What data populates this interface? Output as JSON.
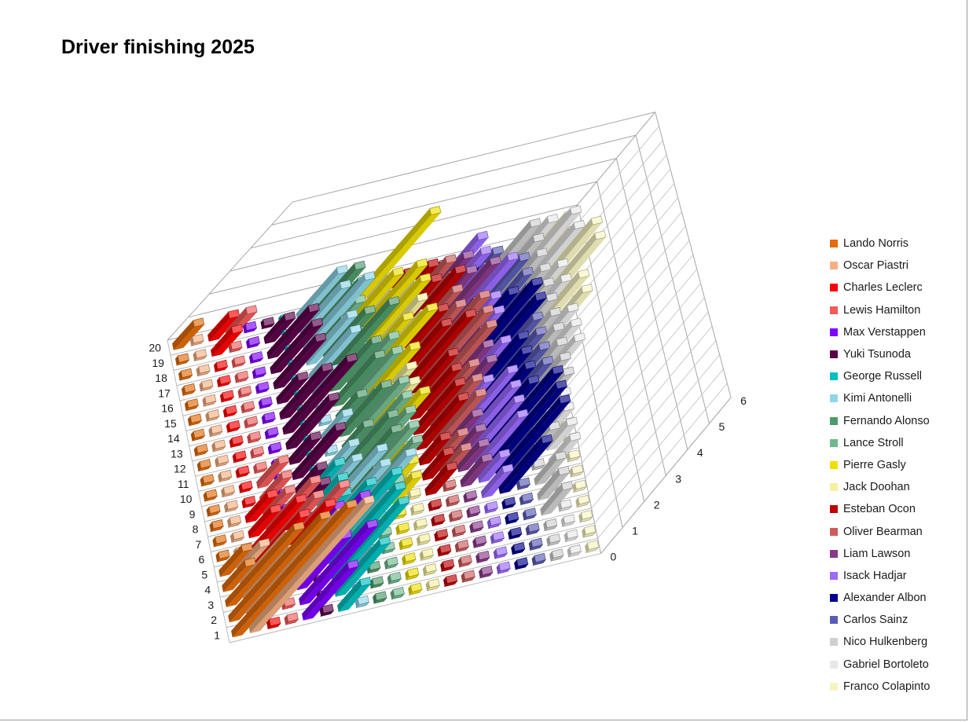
{
  "chart_data": {
    "type": "bar",
    "variant": "3d-column",
    "title": "Driver finishing 2025",
    "zlim": [
      0,
      6
    ],
    "z_ticks": [
      "0",
      "1",
      "2",
      "3",
      "4",
      "5",
      "6"
    ],
    "positions": [
      "1",
      "2",
      "3",
      "4",
      "5",
      "6",
      "7",
      "8",
      "9",
      "10",
      "11",
      "12",
      "13",
      "14",
      "15",
      "16",
      "17",
      "18",
      "19",
      "20"
    ],
    "legend_position": "right",
    "gridlines": true,
    "series": [
      {
        "name": "Lando Norris",
        "color": "#E46C0A",
        "values": [
          5,
          4,
          3,
          1,
          1,
          0,
          0,
          0,
          0,
          0,
          0,
          0,
          0,
          0,
          0,
          0,
          0,
          0,
          0,
          1
        ]
      },
      {
        "name": "Oscar Piastri",
        "color": "#F4B183",
        "values": [
          5,
          4,
          2,
          2,
          1,
          0,
          0,
          0,
          0,
          0,
          0,
          0,
          0,
          0,
          0,
          0,
          0,
          0,
          0,
          0
        ]
      },
      {
        "name": "Charles Leclerc",
        "color": "#FF0000",
        "values": [
          0,
          1,
          3,
          3,
          2,
          2,
          1,
          1,
          0,
          0,
          0,
          0,
          0,
          0,
          0,
          0,
          0,
          0,
          1,
          1
        ]
      },
      {
        "name": "Lewis Hamilton",
        "color": "#F25A5A",
        "values": [
          0,
          0,
          2,
          2,
          3,
          2,
          2,
          1,
          1,
          1,
          0,
          0,
          0,
          0,
          0,
          0,
          0,
          0,
          0,
          1
        ]
      },
      {
        "name": "Max Verstappen",
        "color": "#7F00FF",
        "values": [
          2,
          3,
          2,
          3,
          2,
          1,
          1,
          0,
          0,
          0,
          0,
          0,
          0,
          0,
          0,
          0,
          0,
          0,
          0,
          0
        ]
      },
      {
        "name": "Yuki Tsunoda",
        "color": "#5C0049",
        "values": [
          0,
          0,
          0,
          0,
          0,
          0,
          0,
          1,
          1,
          2,
          1,
          2,
          3,
          2,
          1,
          2,
          2,
          2,
          1,
          0
        ]
      },
      {
        "name": "George Russell",
        "color": "#00C1C1",
        "values": [
          1,
          2,
          3,
          3,
          3,
          2,
          1,
          1,
          1,
          0,
          0,
          0,
          0,
          0,
          0,
          0,
          0,
          0,
          0,
          0
        ]
      },
      {
        "name": "Kimi Antonelli",
        "color": "#8ED6E8",
        "values": [
          0,
          0,
          1,
          1,
          2,
          3,
          2,
          2,
          1,
          1,
          0,
          1,
          0,
          0,
          1,
          2,
          2,
          3,
          2,
          2
        ]
      },
      {
        "name": "Fernando Alonso",
        "color": "#4E9A6A",
        "values": [
          0,
          0,
          0,
          0,
          0,
          0,
          1,
          1,
          2,
          2,
          1,
          2,
          1,
          2,
          2,
          3,
          2,
          1,
          2,
          2
        ]
      },
      {
        "name": "Lance Stroll",
        "color": "#6FB98F",
        "values": [
          0,
          0,
          0,
          0,
          0,
          0,
          1,
          2,
          2,
          2,
          2,
          2,
          1,
          2,
          2,
          1,
          1,
          0,
          1,
          1
        ]
      },
      {
        "name": "Pierre Gasly",
        "color": "#F0E000",
        "values": [
          0,
          0,
          0,
          0,
          0,
          0,
          1,
          1,
          1,
          1,
          2,
          1,
          1,
          2,
          3,
          2,
          3,
          3,
          2,
          4
        ]
      },
      {
        "name": "Jack Doohan",
        "color": "#F5F0A0",
        "values": [
          0,
          0,
          0,
          0,
          0,
          0,
          0,
          0,
          0,
          0,
          0,
          1,
          1,
          1,
          1,
          2,
          2,
          2,
          1,
          1
        ]
      },
      {
        "name": "Esteban Ocon",
        "color": "#C00000",
        "values": [
          0,
          0,
          0,
          0,
          0,
          0,
          1,
          1,
          1,
          2,
          2,
          2,
          2,
          3,
          2,
          2,
          3,
          2,
          2,
          1
        ]
      },
      {
        "name": "Oliver Bearman",
        "color": "#CD5C5C",
        "values": [
          0,
          0,
          0,
          0,
          0,
          0,
          0,
          1,
          1,
          2,
          2,
          2,
          3,
          3,
          3,
          2,
          2,
          2,
          2,
          1
        ]
      },
      {
        "name": "Liam Lawson",
        "color": "#8B3A8B",
        "values": [
          0,
          0,
          0,
          0,
          0,
          0,
          1,
          1,
          1,
          1,
          1,
          2,
          2,
          2,
          2,
          2,
          3,
          2,
          2,
          1
        ]
      },
      {
        "name": "Isack Hadjar",
        "color": "#9B6BFF",
        "values": [
          0,
          0,
          0,
          0,
          0,
          1,
          1,
          2,
          2,
          2,
          2,
          1,
          2,
          1,
          2,
          2,
          3,
          2,
          2,
          2
        ]
      },
      {
        "name": "Alexander Albon",
        "color": "#00008B",
        "values": [
          0,
          0,
          0,
          0,
          0,
          2,
          3,
          3,
          3,
          2,
          2,
          2,
          2,
          3,
          3,
          2,
          1,
          1,
          1,
          0
        ]
      },
      {
        "name": "Carlos Sainz",
        "color": "#5B5BB5",
        "values": [
          0,
          0,
          0,
          0,
          0,
          0,
          1,
          1,
          1,
          1,
          2,
          2,
          2,
          2,
          2,
          2,
          2,
          2,
          1,
          1
        ]
      },
      {
        "name": "Nico Hulkenberg",
        "color": "#CFCFCF",
        "values": [
          0,
          0,
          0,
          1,
          1,
          1,
          0,
          1,
          1,
          2,
          2,
          2,
          2,
          2,
          2,
          2,
          2,
          2,
          2,
          2
        ]
      },
      {
        "name": "Gabriel Bortoleto",
        "color": "#E8E8E8",
        "values": [
          0,
          0,
          0,
          0,
          0,
          0,
          1,
          1,
          1,
          1,
          1,
          2,
          2,
          2,
          1,
          2,
          2,
          3,
          3,
          2
        ]
      },
      {
        "name": "Franco Colapinto",
        "color": "#F8F4C2",
        "values": [
          0,
          0,
          0,
          0,
          0,
          0,
          0,
          0,
          0,
          0,
          0,
          0,
          0,
          1,
          2,
          2,
          3,
          3,
          2,
          2
        ]
      }
    ]
  }
}
